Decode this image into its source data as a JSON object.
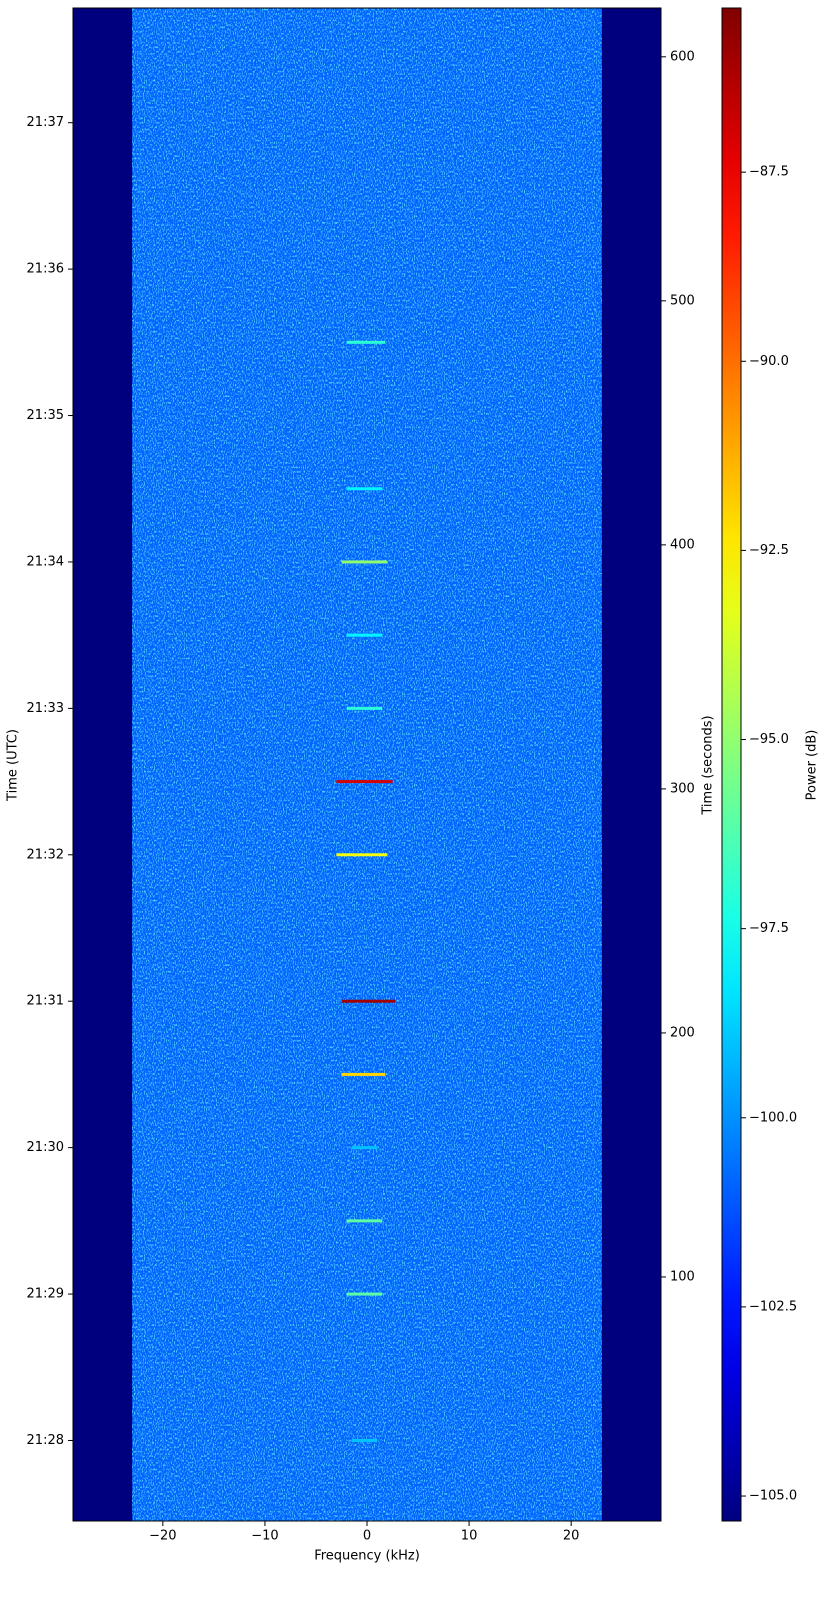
{
  "chart_data": {
    "type": "spectrogram",
    "x_label": "Frequency (kHz)",
    "y_label": "Time (UTC)",
    "y2_label": "Time (seconds)",
    "colorbar_label": "Power (dB)",
    "colormap": "jet",
    "background_color": "#00007f",
    "xlim": [
      -28.8,
      28.8
    ],
    "xticks": [
      {
        "value": -20,
        "label": "−20"
      },
      {
        "value": -10,
        "label": "−10"
      },
      0,
      10,
      20
    ],
    "ylim": [
      0,
      620
    ],
    "yticks": [
      {
        "value": 33,
        "label": "21:28"
      },
      {
        "value": 93,
        "label": "21:29"
      },
      {
        "value": 153,
        "label": "21:30"
      },
      {
        "value": 213,
        "label": "21:31"
      },
      {
        "value": 273,
        "label": "21:32"
      },
      {
        "value": 333,
        "label": "21:33"
      },
      {
        "value": 393,
        "label": "21:34"
      },
      {
        "value": 453,
        "label": "21:35"
      },
      {
        "value": 513,
        "label": "21:36"
      },
      {
        "value": 573,
        "label": "21:37"
      }
    ],
    "y2lim": [
      0,
      620
    ],
    "y2ticks": [
      100,
      200,
      300,
      400,
      500,
      600
    ],
    "clim": [
      -105.33,
      -85.33
    ],
    "cticks": [
      {
        "value": -105,
        "label": "−105.0"
      },
      {
        "value": -102.5,
        "label": "−102.5"
      },
      {
        "value": -100,
        "label": "−100.0"
      },
      {
        "value": -97.5,
        "label": "−97.5"
      },
      {
        "value": -95,
        "label": "−95.0"
      },
      {
        "value": -92.5,
        "label": "−92.5"
      },
      {
        "value": -90,
        "label": "−90.0"
      },
      {
        "value": -87.5,
        "label": "−87.5"
      }
    ],
    "band": [
      -23,
      23
    ],
    "events": {
      "time": [
        33,
        93,
        123,
        153,
        183,
        213,
        273,
        303,
        333,
        363,
        393,
        423,
        483
      ],
      "power": [
        -99,
        -96,
        -96,
        -99,
        -92,
        -86,
        -93,
        -87,
        -97,
        -98,
        -95,
        -98,
        -97
      ],
      "f_low": [
        -1.5,
        -2,
        -2,
        -1.5,
        -2.5,
        -2.5,
        -3,
        -3,
        -2,
        -2,
        -2.5,
        -2,
        -2
      ],
      "f_high": [
        1,
        1.5,
        1.5,
        1,
        1.8,
        2.8,
        2,
        2.5,
        1.5,
        1.5,
        2,
        1.5,
        1.8
      ]
    }
  }
}
